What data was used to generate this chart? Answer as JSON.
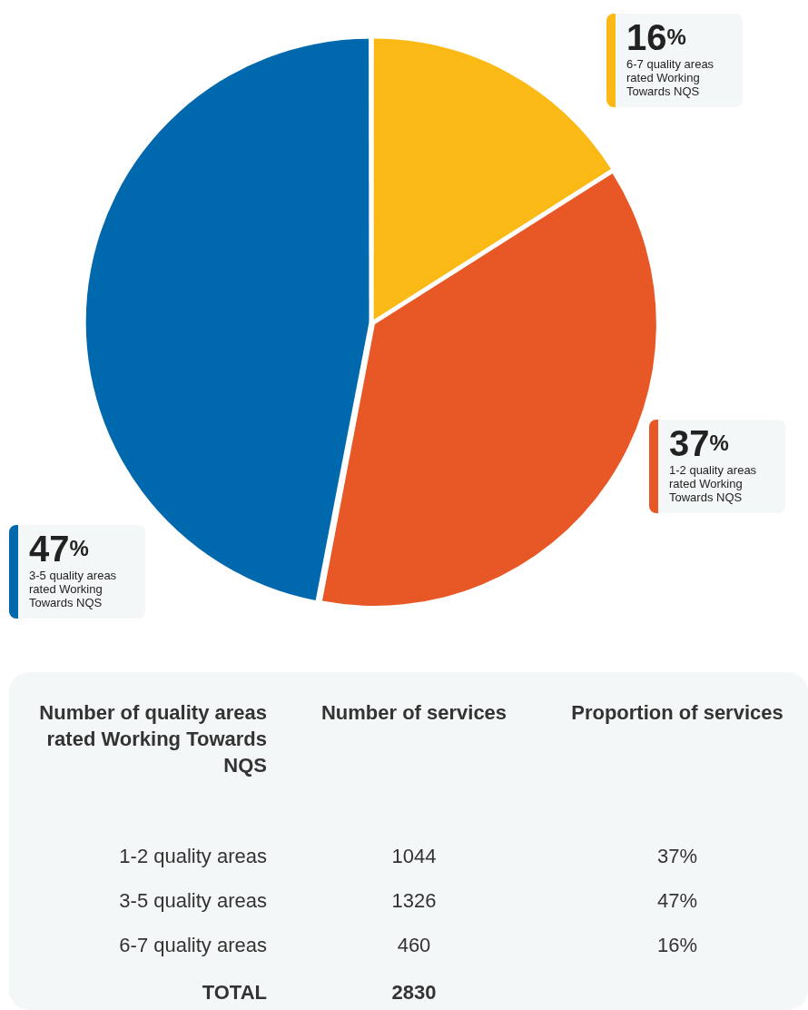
{
  "chart_data": {
    "type": "pie",
    "categories": [
      "1-2 quality areas rated Working Towards NQS",
      "3-5 quality areas rated Working Towards NQS",
      "6-7 quality areas rated Working Towards NQS"
    ],
    "values": [
      37,
      47,
      16
    ],
    "colors": [
      "#e85726",
      "#0068ad",
      "#fbb915"
    ],
    "value_labels": [
      "37%",
      "47%",
      "16%"
    ],
    "annotations": [
      "1-2 quality areas",
      "3-5 quality areas",
      "6-7 quality areas",
      "1044",
      "1326",
      "460",
      "Number of quality areas rated Working Towards NQS",
      "Number of services",
      "Proportion of services",
      "TOTAL",
      "2830"
    ]
  }
}
